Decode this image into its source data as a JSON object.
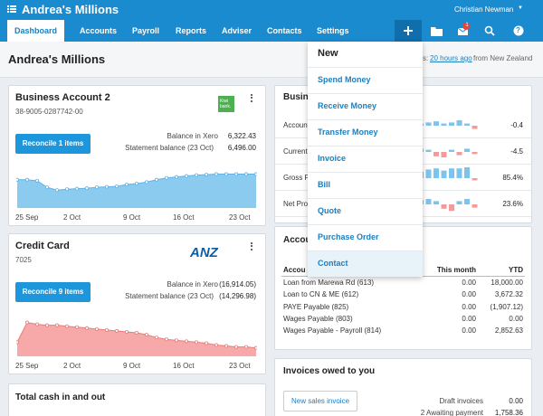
{
  "header": {
    "app_title": "Andrea's Millions",
    "user": "Christian Newman",
    "mail_badge": "1"
  },
  "nav": {
    "tabs": [
      "Dashboard",
      "Accounts",
      "Payroll",
      "Reports",
      "Adviser",
      "Contacts",
      "Settings"
    ],
    "active": 0
  },
  "page": {
    "title": "Andrea's Millions",
    "sync_prefix": "s:",
    "sync_time": "20 hours ago",
    "sync_suffix": "from New Zealand"
  },
  "new_menu": {
    "title": "New",
    "items": [
      "Spend Money",
      "Receive Money",
      "Transfer Money",
      "Invoice",
      "Bill",
      "Quote",
      "Purchase Order",
      "Contact"
    ],
    "highlighted": 7
  },
  "bank_accounts": [
    {
      "name": "Business Account 2",
      "number": "38-9005-0287742-00",
      "logo": "Kiwi bank.",
      "button": "Reconcile 1 items",
      "balance_label": "Balance in Xero",
      "balance": "6,322.43",
      "statement_label": "Statement balance (23 Oct)",
      "statement": "6,496.00",
      "chart": {
        "color": "#8ccbf0",
        "line": "#5fb2e6",
        "ylim": [
          0,
          100
        ],
        "values": [
          60,
          60,
          58,
          44,
          38,
          40,
          41,
          42,
          44,
          45,
          46,
          50,
          52,
          55,
          60,
          64,
          66,
          68,
          70,
          71,
          72,
          72,
          72,
          72,
          72
        ],
        "x_labels": [
          "25 Sep",
          "2 Oct",
          "9 Oct",
          "16 Oct",
          "23 Oct"
        ]
      }
    },
    {
      "name": "Credit Card",
      "number": "7025",
      "logo": "ANZ",
      "button": "Reconcile 9 items",
      "balance_label": "Balance in Xero",
      "balance": "(16,914.05)",
      "statement_label": "Statement balance (23 Oct)",
      "statement": "(14,296.98)",
      "chart": {
        "color": "#f7a8a8",
        "line": "#e57d7d",
        "ylim": [
          0,
          100
        ],
        "values": [
          30,
          72,
          68,
          66,
          66,
          64,
          62,
          60,
          58,
          56,
          54,
          52,
          50,
          46,
          40,
          36,
          34,
          32,
          30,
          28,
          24,
          22,
          20,
          20,
          18
        ],
        "x_labels": [
          "25 Sep",
          "2 Oct",
          "9 Oct",
          "16 Oct",
          "23 Oct"
        ]
      }
    }
  ],
  "total_cash": {
    "title": "Total cash in and out"
  },
  "business_card": {
    "title": "Busine",
    "ylim": [
      -10,
      10
    ],
    "rows": [
      {
        "label": "Account",
        "value": "-0.4",
        "bars": [
          2,
          3,
          4,
          2,
          3,
          5,
          2,
          -3
        ]
      },
      {
        "label": "Current",
        "value": "-4.5",
        "bars": [
          3,
          2,
          -4,
          -5,
          2,
          -3,
          3,
          -2
        ]
      },
      {
        "label": "Gross P",
        "value": "85.4%",
        "bars": [
          6,
          8,
          9,
          7,
          9,
          9,
          10,
          -2
        ]
      },
      {
        "label": "Net Prof",
        "value": "23.6%",
        "bars": [
          4,
          5,
          3,
          -4,
          -6,
          3,
          5,
          -3
        ]
      }
    ]
  },
  "accounts_watchlist": {
    "title": "Accou",
    "columns": [
      "Accou",
      "This month",
      "YTD"
    ],
    "rows": [
      [
        "Loan from Marewa Rd (613)",
        "0.00",
        "18,000.00"
      ],
      [
        "Loan to CN & ME (612)",
        "0.00",
        "3,672.32"
      ],
      [
        "PAYE Payable (825)",
        "0.00",
        "(1,907.12)"
      ],
      [
        "Wages Payable (803)",
        "0.00",
        "0.00"
      ],
      [
        "Wages Payable - Payroll (814)",
        "0.00",
        "2,852.63"
      ]
    ]
  },
  "invoices": {
    "title": "Invoices owed to you",
    "button": "New sales invoice",
    "rows": [
      [
        "Draft invoices",
        "0.00"
      ],
      [
        "2 Awaiting payment",
        "1,758.36"
      ]
    ]
  }
}
